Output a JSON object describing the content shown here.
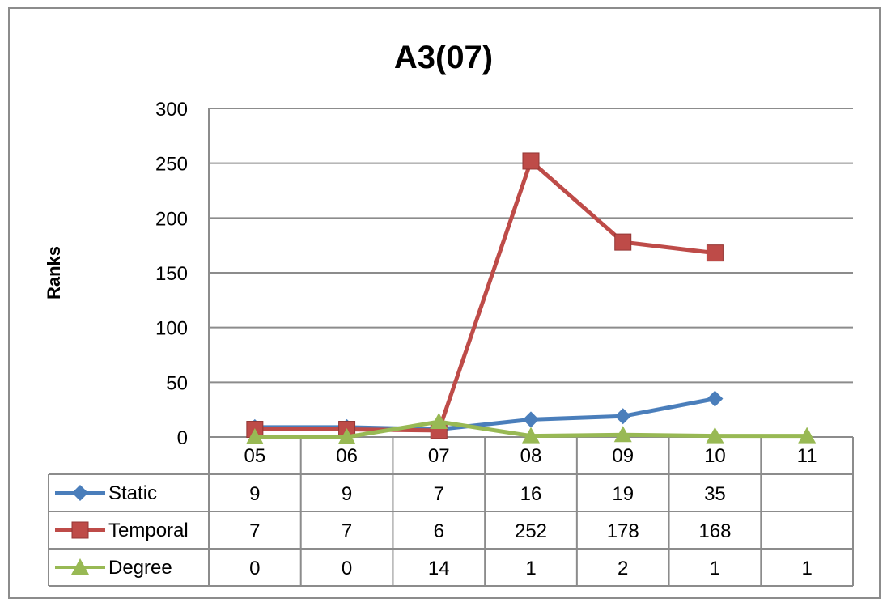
{
  "chart_data": {
    "type": "line",
    "title": "A3(07)",
    "xlabel": "",
    "ylabel": "Ranks",
    "ylim": [
      0,
      300
    ],
    "yticks": [
      0,
      50,
      100,
      150,
      200,
      250,
      300
    ],
    "categories": [
      "05",
      "06",
      "07",
      "08",
      "09",
      "10",
      "11"
    ],
    "grid": true,
    "legend": "data-table",
    "series": [
      {
        "name": "Static",
        "color": "#4a7ebb",
        "marker": "diamond",
        "values": [
          9,
          9,
          7,
          16,
          19,
          35,
          null
        ],
        "labels": [
          "9",
          "9",
          "7",
          "16",
          "19",
          "35",
          ""
        ]
      },
      {
        "name": "Temporal",
        "color": "#be4b48",
        "marker": "square",
        "values": [
          7,
          7,
          6,
          252,
          178,
          168,
          null
        ],
        "labels": [
          "7",
          "7",
          "6",
          "252",
          "178",
          "168",
          ""
        ]
      },
      {
        "name": "Degree",
        "color": "#98b954",
        "marker": "triangle",
        "values": [
          0,
          0,
          14,
          1,
          2,
          1,
          1
        ],
        "labels": [
          "0",
          "0",
          "14",
          "1",
          "2",
          "1",
          "1"
        ]
      }
    ]
  }
}
